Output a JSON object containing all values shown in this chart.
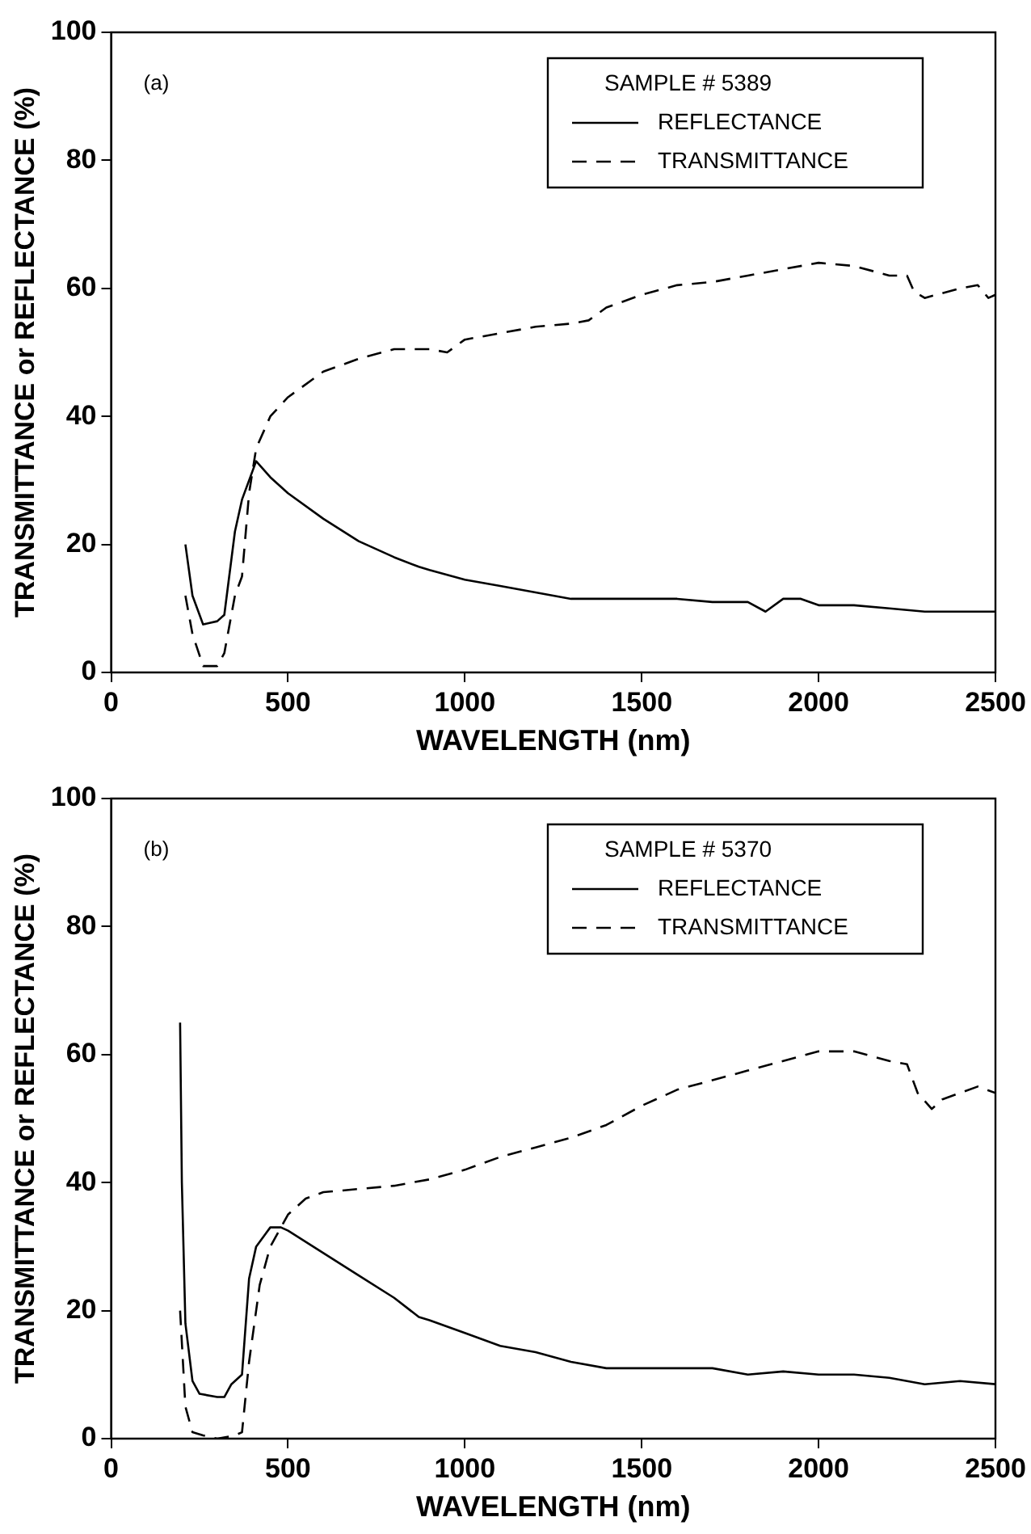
{
  "chart_data": [
    {
      "type": "line",
      "xlabel": "WAVELENGTH (nm)",
      "ylabel": "TRANSMITTANCE or REFLECTANCE (%)",
      "legend_title": "SAMPLE # 5389",
      "annotations": [
        "(a)"
      ],
      "xlim": [
        0,
        2500
      ],
      "xticks": [
        0,
        500,
        1000,
        1500,
        2000,
        2500
      ],
      "ylim": [
        0,
        100
      ],
      "yticks": [
        0,
        20,
        40,
        60,
        80,
        100
      ],
      "grid": false,
      "legend": "top right",
      "marker": "none",
      "series": [
        {
          "name": "REFLECTANCE",
          "color": "#000000",
          "line_style": "solid",
          "x": [
            210,
            230,
            260,
            300,
            320,
            350,
            370,
            390,
            410,
            450,
            500,
            600,
            700,
            800,
            870,
            900,
            1000,
            1100,
            1200,
            1300,
            1400,
            1500,
            1600,
            1700,
            1800,
            1850,
            1900,
            1950,
            2000,
            2100,
            2200,
            2300,
            2400,
            2500
          ],
          "values": [
            20,
            12,
            7.5,
            8,
            9,
            22,
            27,
            30,
            33,
            30.5,
            28,
            24,
            20.5,
            18,
            16.5,
            16,
            14.5,
            13.5,
            12.5,
            11.5,
            11.5,
            11.5,
            11.5,
            11,
            11,
            9.5,
            11.5,
            11.5,
            10.5,
            10.5,
            10,
            9.5,
            9.5,
            9.5
          ]
        },
        {
          "name": "TRANSMITTANCE",
          "color": "#000000",
          "line_style": "dashed",
          "x": [
            210,
            230,
            260,
            300,
            320,
            350,
            370,
            390,
            410,
            450,
            500,
            600,
            700,
            800,
            900,
            950,
            1000,
            1100,
            1200,
            1300,
            1350,
            1400,
            1500,
            1600,
            1700,
            1800,
            1900,
            2000,
            2100,
            2200,
            2250,
            2270,
            2300,
            2400,
            2450,
            2480,
            2500
          ],
          "values": [
            12,
            6,
            1,
            1,
            3,
            12,
            15,
            28,
            35,
            40,
            43,
            47,
            49,
            50.5,
            50.5,
            50,
            52,
            53,
            54,
            54.5,
            55,
            57,
            59,
            60.5,
            61,
            62,
            63,
            64,
            63.5,
            62,
            62,
            59.5,
            58.5,
            60,
            60.5,
            58.5,
            59
          ]
        }
      ]
    },
    {
      "type": "line",
      "xlabel": "WAVELENGTH (nm)",
      "ylabel": "TRANSMITTANCE or REFLECTANCE (%)",
      "legend_title": "SAMPLE # 5370",
      "annotations": [
        "(b)"
      ],
      "xlim": [
        0,
        2500
      ],
      "xticks": [
        0,
        500,
        1000,
        1500,
        2000,
        2500
      ],
      "ylim": [
        0,
        100
      ],
      "yticks": [
        0,
        20,
        40,
        60,
        80,
        100
      ],
      "grid": false,
      "legend": "top right",
      "marker": "none",
      "series": [
        {
          "name": "REFLECTANCE",
          "color": "#000000",
          "line_style": "solid",
          "x": [
            195,
            200,
            210,
            230,
            250,
            300,
            320,
            340,
            360,
            370,
            390,
            410,
            450,
            480,
            500,
            600,
            700,
            800,
            870,
            900,
            1000,
            1100,
            1200,
            1300,
            1400,
            1500,
            1600,
            1700,
            1800,
            1900,
            2000,
            2100,
            2200,
            2300,
            2400,
            2500
          ],
          "values": [
            65,
            40,
            18,
            9,
            7,
            6.5,
            6.5,
            8.5,
            9.5,
            10,
            25,
            30,
            33,
            33,
            32.5,
            29,
            25.5,
            22,
            19,
            18.5,
            16.5,
            14.5,
            13.5,
            12,
            11,
            11,
            11,
            11,
            10,
            10.5,
            10,
            10,
            9.5,
            8.5,
            9,
            8.5
          ]
        },
        {
          "name": "TRANSMITTANCE",
          "color": "#000000",
          "line_style": "dashed",
          "x": [
            195,
            210,
            230,
            260,
            300,
            350,
            370,
            390,
            420,
            450,
            480,
            500,
            550,
            600,
            700,
            800,
            850,
            900,
            1000,
            1100,
            1200,
            1300,
            1400,
            1500,
            1600,
            1700,
            1800,
            1900,
            2000,
            2100,
            2200,
            2250,
            2280,
            2320,
            2350,
            2400,
            2450,
            2500
          ],
          "values": [
            20,
            5,
            1,
            0.5,
            0,
            0.5,
            1,
            12,
            24,
            30,
            33,
            35,
            37.5,
            38.5,
            39,
            39.5,
            40,
            40.5,
            42,
            44,
            45.5,
            47,
            49,
            52,
            54.5,
            56,
            57.5,
            59,
            60.5,
            60.5,
            59,
            58.5,
            54,
            51.5,
            53,
            54,
            55,
            54
          ]
        }
      ]
    }
  ]
}
